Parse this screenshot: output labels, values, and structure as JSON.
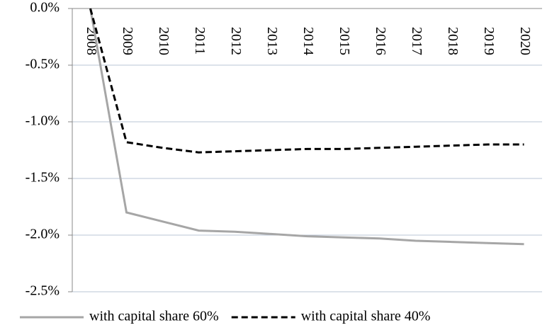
{
  "chart_data": {
    "type": "line",
    "categories": [
      "2008",
      "2009",
      "2010",
      "2011",
      "2012",
      "2013",
      "2014",
      "2015",
      "2016",
      "2017",
      "2018",
      "2019",
      "2020"
    ],
    "series": [
      {
        "name": "with capital share 60%",
        "color": "#a6a6a6",
        "line_style": "solid",
        "values": [
          0,
          -1.8,
          -1.88,
          -1.96,
          -1.97,
          -1.99,
          -2.01,
          -2.02,
          -2.03,
          -2.05,
          -2.06,
          -2.07,
          -2.08
        ]
      },
      {
        "name": "with capital share 40%",
        "color": "#000000",
        "line_style": "dashed",
        "values": [
          0,
          -1.18,
          -1.23,
          -1.27,
          -1.26,
          -1.25,
          -1.24,
          -1.24,
          -1.23,
          -1.22,
          -1.21,
          -1.2,
          -1.2
        ]
      }
    ],
    "ylim": [
      -2.5,
      0
    ],
    "yticks": [
      {
        "value": 0,
        "label": "0.0%"
      },
      {
        "value": -0.5,
        "label": "-0.5%"
      },
      {
        "value": -1,
        "label": "-1.0%"
      },
      {
        "value": -1.5,
        "label": "-1.5%"
      },
      {
        "value": -2,
        "label": "-2.0%"
      },
      {
        "value": -2.5,
        "label": "-2.5%"
      }
    ],
    "grid": true,
    "legend": "bottom"
  }
}
